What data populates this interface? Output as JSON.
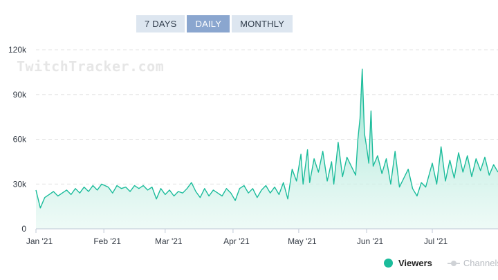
{
  "range_tabs": [
    {
      "label": "7 DAYS",
      "active": false
    },
    {
      "label": "DAILY",
      "active": true
    },
    {
      "label": "MONTHLY",
      "active": false
    }
  ],
  "watermark": "TwitchTracker.com",
  "legend": {
    "viewers": "Viewers",
    "channels": "Channels"
  },
  "colors": {
    "viewers_line": "#1bbc9b",
    "viewers_fill_top": "#8fe0cc",
    "viewers_fill_bottom": "#e3f7f1",
    "grid": "#e3e3e3",
    "axis": "#bfc8d6",
    "channels_hidden": "#cfd2d6"
  },
  "chart_data": {
    "type": "area",
    "title": "",
    "xlabel": "",
    "ylabel": "",
    "x_start": "2021-01-01",
    "x_end": "2021-07-31",
    "ylim": [
      0,
      120000
    ],
    "y_ticks": [
      0,
      30000,
      60000,
      90000,
      120000
    ],
    "y_tick_labels": [
      "0",
      "30k",
      "60k",
      "90k",
      "120k"
    ],
    "x_ticks": [
      {
        "date": "2021-01-01",
        "label": "Jan '21"
      },
      {
        "date": "2021-02-01",
        "label": "Feb '21"
      },
      {
        "date": "2021-03-01",
        "label": "Mar '21"
      },
      {
        "date": "2021-04-01",
        "label": "Apr '21"
      },
      {
        "date": "2021-05-01",
        "label": "May '21"
      },
      {
        "date": "2021-06-01",
        "label": "Jun '21"
      },
      {
        "date": "2021-07-01",
        "label": "Jul '21"
      }
    ],
    "grid": true,
    "legend_position": "bottom-right",
    "series": [
      {
        "name": "Viewers",
        "visible": true,
        "points": [
          [
            "2021-01-01",
            26000
          ],
          [
            "2021-01-03",
            14000
          ],
          [
            "2021-01-05",
            21000
          ],
          [
            "2021-01-07",
            23000
          ],
          [
            "2021-01-09",
            25000
          ],
          [
            "2021-01-11",
            22000
          ],
          [
            "2021-01-13",
            24000
          ],
          [
            "2021-01-15",
            26000
          ],
          [
            "2021-01-17",
            23000
          ],
          [
            "2021-01-19",
            27000
          ],
          [
            "2021-01-21",
            24000
          ],
          [
            "2021-01-23",
            28000
          ],
          [
            "2021-01-25",
            25000
          ],
          [
            "2021-01-27",
            29000
          ],
          [
            "2021-01-29",
            26000
          ],
          [
            "2021-01-31",
            30000
          ],
          [
            "2021-02-03",
            28000
          ],
          [
            "2021-02-05",
            24000
          ],
          [
            "2021-02-07",
            29000
          ],
          [
            "2021-02-09",
            27000
          ],
          [
            "2021-02-11",
            28000
          ],
          [
            "2021-02-13",
            25000
          ],
          [
            "2021-02-15",
            29000
          ],
          [
            "2021-02-17",
            27000
          ],
          [
            "2021-02-19",
            29000
          ],
          [
            "2021-02-21",
            26000
          ],
          [
            "2021-02-23",
            28000
          ],
          [
            "2021-02-25",
            20000
          ],
          [
            "2021-02-27",
            27000
          ],
          [
            "2021-03-01",
            23000
          ],
          [
            "2021-03-03",
            26000
          ],
          [
            "2021-03-05",
            22000
          ],
          [
            "2021-03-07",
            25000
          ],
          [
            "2021-03-09",
            24000
          ],
          [
            "2021-03-11",
            27000
          ],
          [
            "2021-03-13",
            31000
          ],
          [
            "2021-03-15",
            25000
          ],
          [
            "2021-03-17",
            21000
          ],
          [
            "2021-03-19",
            27000
          ],
          [
            "2021-03-21",
            22000
          ],
          [
            "2021-03-23",
            26000
          ],
          [
            "2021-03-25",
            24000
          ],
          [
            "2021-03-27",
            22000
          ],
          [
            "2021-03-29",
            27000
          ],
          [
            "2021-03-31",
            24000
          ],
          [
            "2021-04-02",
            19000
          ],
          [
            "2021-04-04",
            27000
          ],
          [
            "2021-04-06",
            29000
          ],
          [
            "2021-04-08",
            24000
          ],
          [
            "2021-04-10",
            27000
          ],
          [
            "2021-04-12",
            21000
          ],
          [
            "2021-04-14",
            26000
          ],
          [
            "2021-04-16",
            29000
          ],
          [
            "2021-04-18",
            24000
          ],
          [
            "2021-04-20",
            28000
          ],
          [
            "2021-04-22",
            23000
          ],
          [
            "2021-04-24",
            31000
          ],
          [
            "2021-04-26",
            20000
          ],
          [
            "2021-04-28",
            40000
          ],
          [
            "2021-04-30",
            32000
          ],
          [
            "2021-05-02",
            50000
          ],
          [
            "2021-05-03",
            30000
          ],
          [
            "2021-05-05",
            53000
          ],
          [
            "2021-05-06",
            31000
          ],
          [
            "2021-05-08",
            47000
          ],
          [
            "2021-05-10",
            38000
          ],
          [
            "2021-05-12",
            52000
          ],
          [
            "2021-05-14",
            32000
          ],
          [
            "2021-05-16",
            45000
          ],
          [
            "2021-05-17",
            30000
          ],
          [
            "2021-05-19",
            58000
          ],
          [
            "2021-05-21",
            35000
          ],
          [
            "2021-05-23",
            48000
          ],
          [
            "2021-05-25",
            42000
          ],
          [
            "2021-05-27",
            36000
          ],
          [
            "2021-05-28",
            60000
          ],
          [
            "2021-05-29",
            74000
          ],
          [
            "2021-05-30",
            107000
          ],
          [
            "2021-05-31",
            64000
          ],
          [
            "2021-06-01",
            55000
          ],
          [
            "2021-06-02",
            44000
          ],
          [
            "2021-06-03",
            79000
          ],
          [
            "2021-06-04",
            42000
          ],
          [
            "2021-06-06",
            49000
          ],
          [
            "2021-06-08",
            37000
          ],
          [
            "2021-06-10",
            47000
          ],
          [
            "2021-06-12",
            30000
          ],
          [
            "2021-06-14",
            52000
          ],
          [
            "2021-06-16",
            28000
          ],
          [
            "2021-06-18",
            34000
          ],
          [
            "2021-06-20",
            40000
          ],
          [
            "2021-06-22",
            27000
          ],
          [
            "2021-06-24",
            22000
          ],
          [
            "2021-06-26",
            31000
          ],
          [
            "2021-06-28",
            28000
          ],
          [
            "2021-07-01",
            44000
          ],
          [
            "2021-07-03",
            30000
          ],
          [
            "2021-07-05",
            55000
          ],
          [
            "2021-07-07",
            32000
          ],
          [
            "2021-07-09",
            46000
          ],
          [
            "2021-07-11",
            34000
          ],
          [
            "2021-07-13",
            51000
          ],
          [
            "2021-07-15",
            38000
          ],
          [
            "2021-07-17",
            49000
          ],
          [
            "2021-07-19",
            35000
          ],
          [
            "2021-07-21",
            47000
          ],
          [
            "2021-07-23",
            39000
          ],
          [
            "2021-07-25",
            48000
          ],
          [
            "2021-07-27",
            36000
          ],
          [
            "2021-07-29",
            43000
          ],
          [
            "2021-07-31",
            38000
          ]
        ]
      },
      {
        "name": "Channels",
        "visible": false,
        "points": []
      }
    ]
  }
}
